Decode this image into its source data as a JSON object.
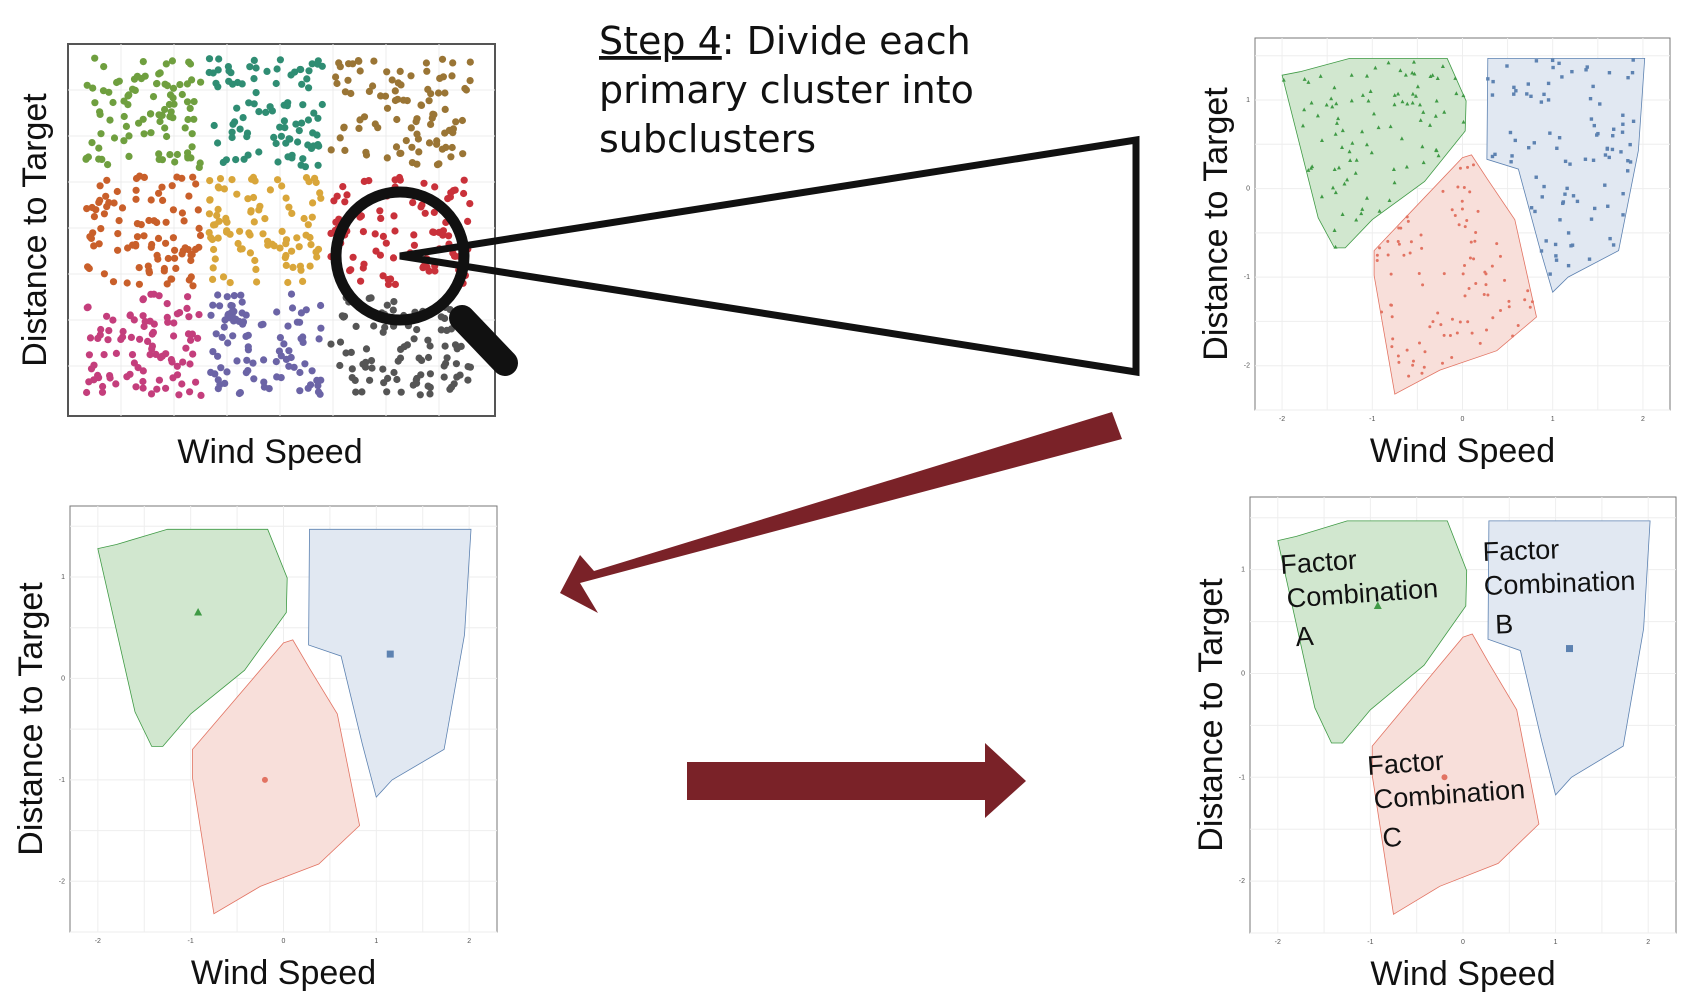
{
  "caption": {
    "step": "Step 4",
    "line1_rest": ": Divide each",
    "line2": "primary cluster into",
    "line3": "subclusters"
  },
  "axis": {
    "x_label": "Wind Speed",
    "y_label": "Distance to Target",
    "x_ticks": [
      "-2",
      "-1",
      "0",
      "1",
      "2"
    ],
    "y_ticks": [
      "1",
      "0",
      "-1",
      "-2"
    ]
  },
  "labels": {
    "factor_a": [
      "Factor",
      "Combination",
      "A"
    ],
    "factor_b": [
      "Factor",
      "Combination",
      "B"
    ],
    "factor_c": [
      "Factor",
      "Combination",
      "C"
    ]
  },
  "colors": {
    "arrow": "#7a2228",
    "green_fill": "#cfe6cc",
    "red_fill": "#f8ddd8",
    "blue_fill": "#dfe7f1",
    "green_point": "#3f9a45",
    "red_point": "#e27362",
    "blue_point": "#5d82b1",
    "primary_clusters": [
      "#6f9f3f",
      "#2f8d73",
      "#9a7535",
      "#c95f2a",
      "#d9a63a",
      "#c9313a",
      "#c43e7c",
      "#6b64a6",
      "#555555"
    ]
  }
}
